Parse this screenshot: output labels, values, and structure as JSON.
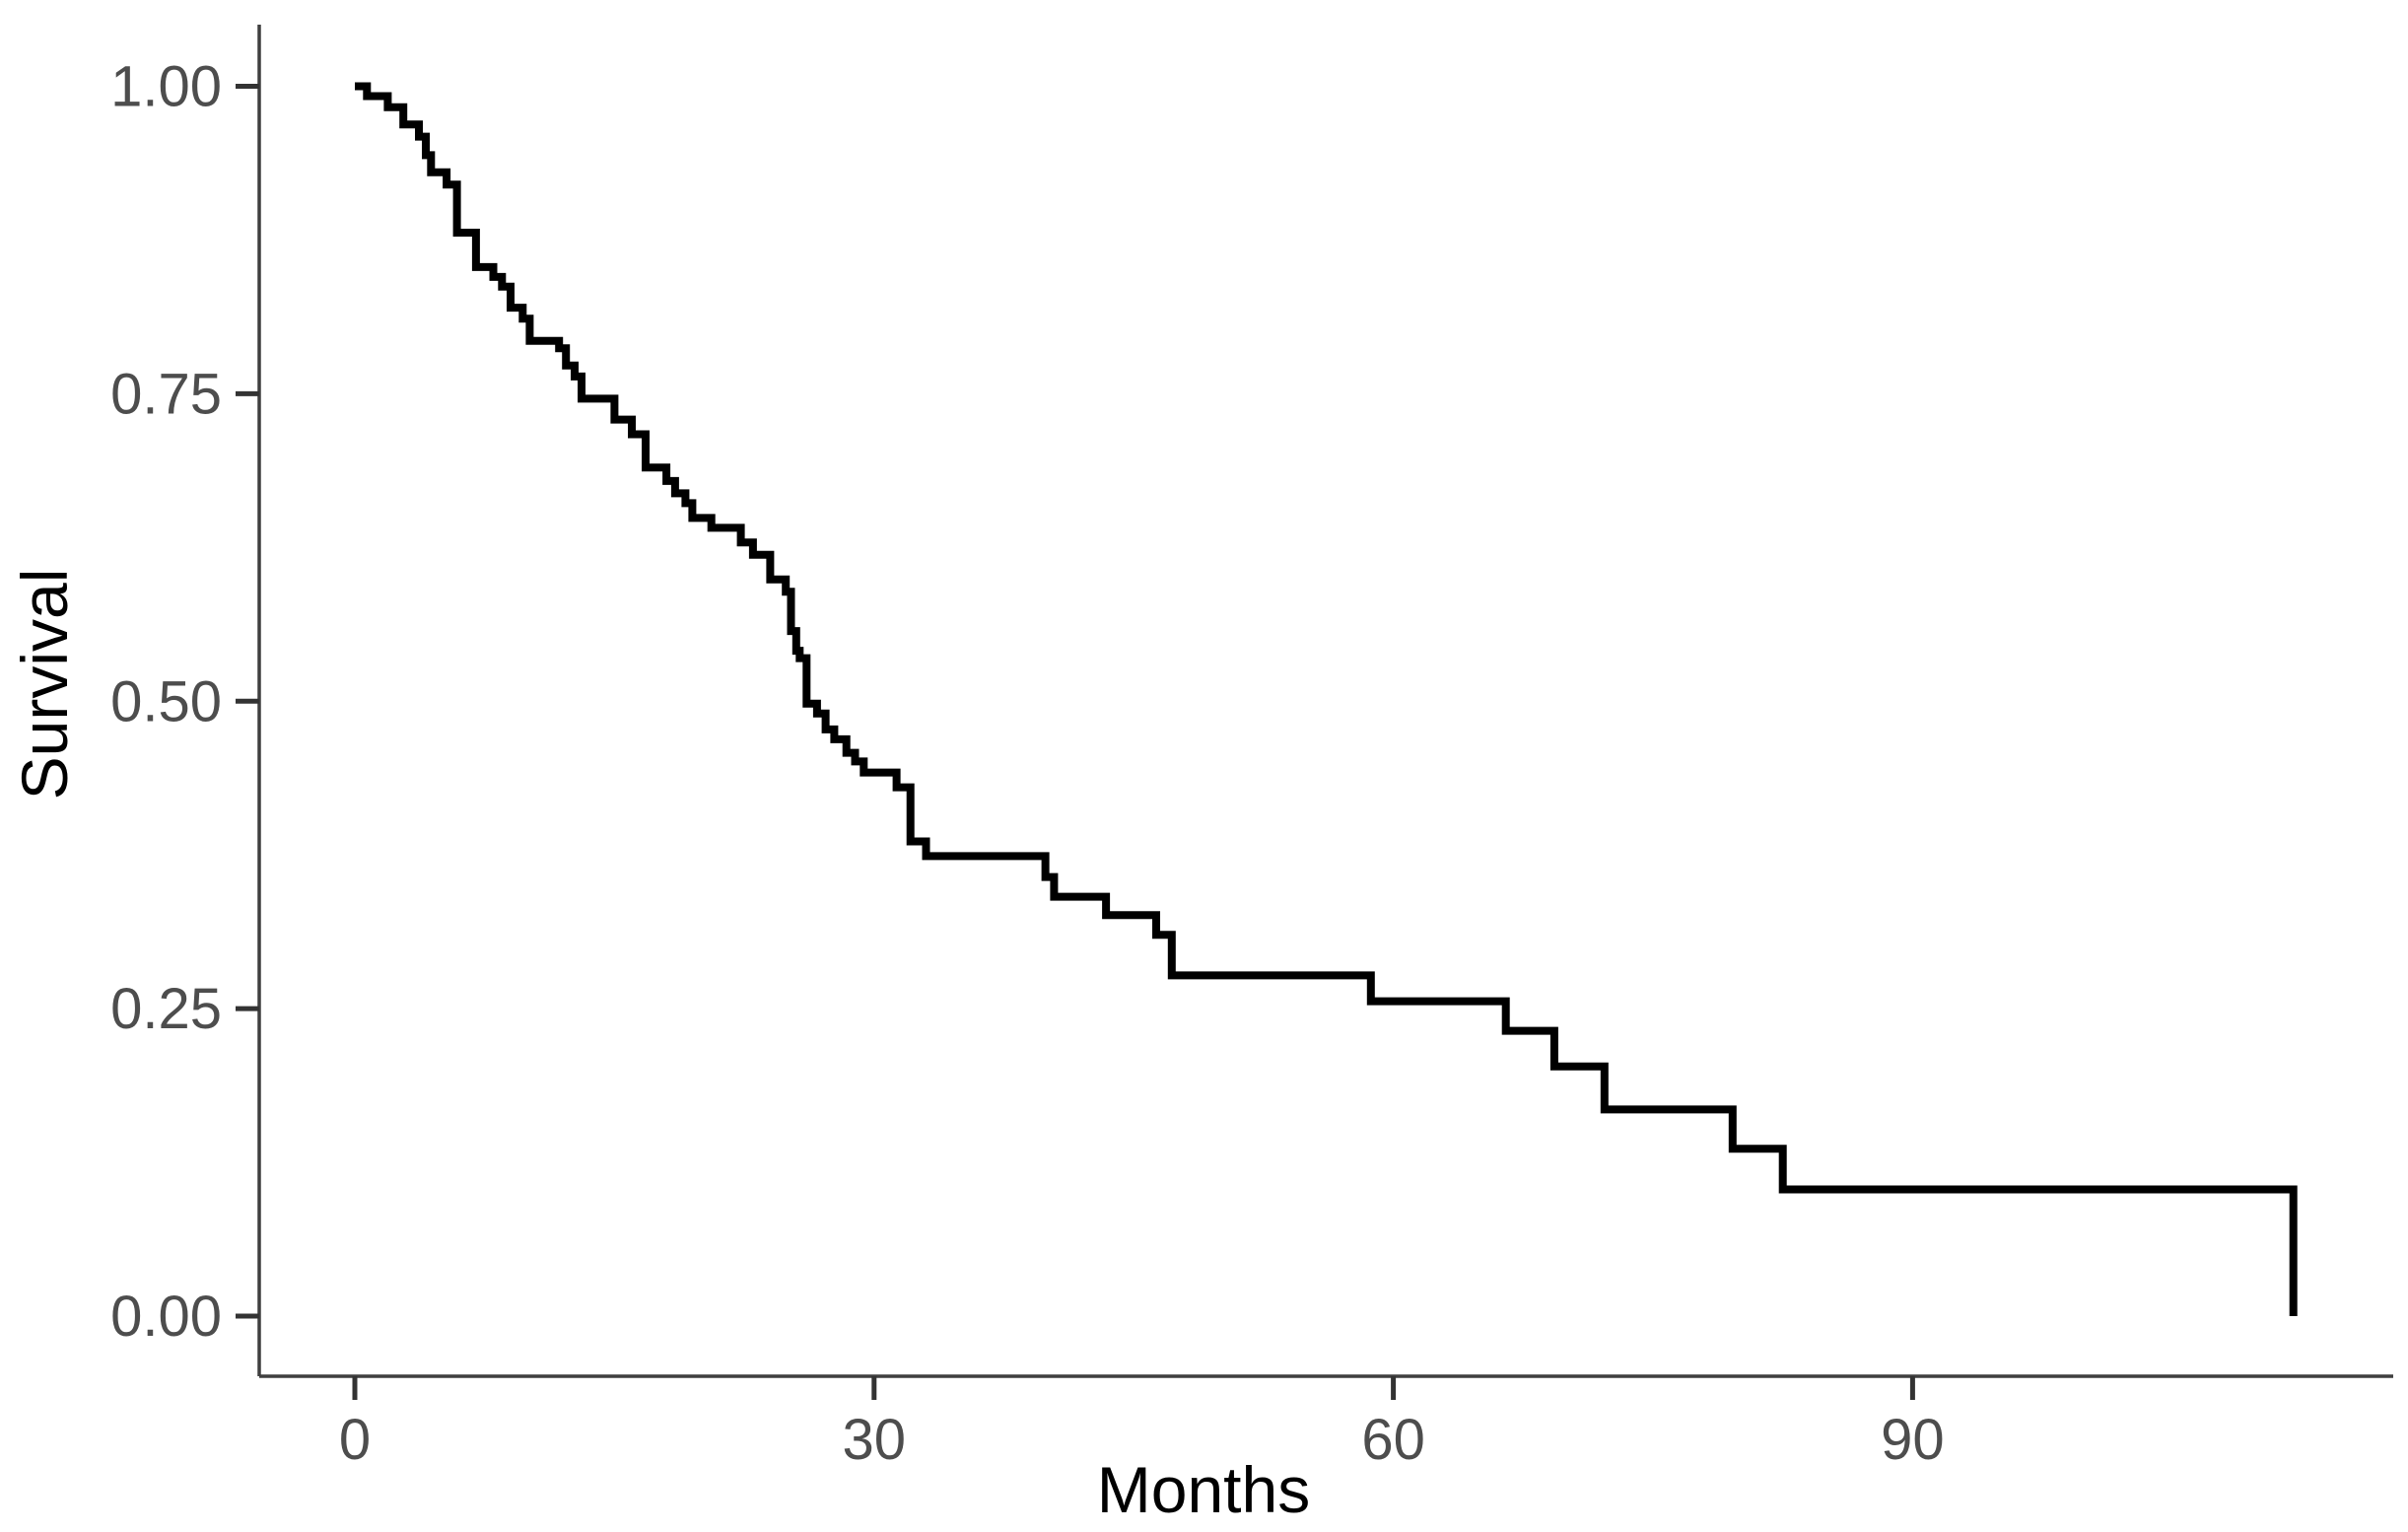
{
  "figure": {
    "background": "#ffffff"
  },
  "chart_data": {
    "type": "line",
    "subtype": "kaplan-meier-step-curve",
    "title": "",
    "xlabel": "Months",
    "ylabel": "Survival",
    "x_ticks": [
      0,
      30,
      60,
      90
    ],
    "y_ticks": [
      {
        "value": 0.0,
        "label": "0.00"
      },
      {
        "value": 0.25,
        "label": "0.25"
      },
      {
        "value": 0.5,
        "label": "0.50"
      },
      {
        "value": 0.75,
        "label": "0.75"
      },
      {
        "value": 1.0,
        "label": "1.00"
      }
    ],
    "xlim": [
      -5.5,
      118
    ],
    "ylim": [
      0.0,
      1.0
    ],
    "grid": false,
    "legend_position": "none",
    "colors": {
      "curve": "#000000",
      "axis_line": "#3f3f3f",
      "tick_mark": "#333333",
      "tick_label": "#4d4d4d",
      "axis_title": "#000000"
    },
    "start": {
      "t": 0,
      "s": 1.0
    },
    "steps": [
      [
        0.7,
        0.992
      ],
      [
        1.9,
        0.983
      ],
      [
        2.8,
        0.969
      ],
      [
        3.7,
        0.959
      ],
      [
        4.1,
        0.944
      ],
      [
        4.4,
        0.93
      ],
      [
        5.3,
        0.92
      ],
      [
        5.9,
        0.881
      ],
      [
        7.0,
        0.853
      ],
      [
        8.0,
        0.845
      ],
      [
        8.5,
        0.837
      ],
      [
        9.0,
        0.82
      ],
      [
        9.7,
        0.811
      ],
      [
        10.1,
        0.793
      ],
      [
        11.8,
        0.787
      ],
      [
        12.2,
        0.773
      ],
      [
        12.7,
        0.764
      ],
      [
        13.1,
        0.746
      ],
      [
        15.0,
        0.729
      ],
      [
        16.0,
        0.717
      ],
      [
        16.8,
        0.69
      ],
      [
        18.0,
        0.679
      ],
      [
        18.5,
        0.669
      ],
      [
        19.1,
        0.661
      ],
      [
        19.5,
        0.649
      ],
      [
        20.6,
        0.641
      ],
      [
        22.3,
        0.629
      ],
      [
        23.0,
        0.619
      ],
      [
        24.0,
        0.599
      ],
      [
        24.9,
        0.589
      ],
      [
        25.2,
        0.557
      ],
      [
        25.5,
        0.541
      ],
      [
        25.7,
        0.535
      ],
      [
        26.1,
        0.498
      ],
      [
        26.7,
        0.49
      ],
      [
        27.2,
        0.477
      ],
      [
        27.7,
        0.469
      ],
      [
        28.4,
        0.458
      ],
      [
        28.9,
        0.451
      ],
      [
        29.4,
        0.442
      ],
      [
        31.3,
        0.43
      ],
      [
        32.1,
        0.386
      ],
      [
        33.0,
        0.374
      ],
      [
        39.9,
        0.357
      ],
      [
        40.4,
        0.341
      ],
      [
        43.4,
        0.326
      ],
      [
        46.3,
        0.31
      ],
      [
        47.2,
        0.277
      ],
      [
        58.7,
        0.256
      ],
      [
        66.5,
        0.232
      ],
      [
        69.3,
        0.203
      ],
      [
        72.2,
        0.168
      ],
      [
        79.6,
        0.136
      ],
      [
        82.5,
        0.103
      ],
      [
        112.0,
        0.0
      ]
    ]
  }
}
